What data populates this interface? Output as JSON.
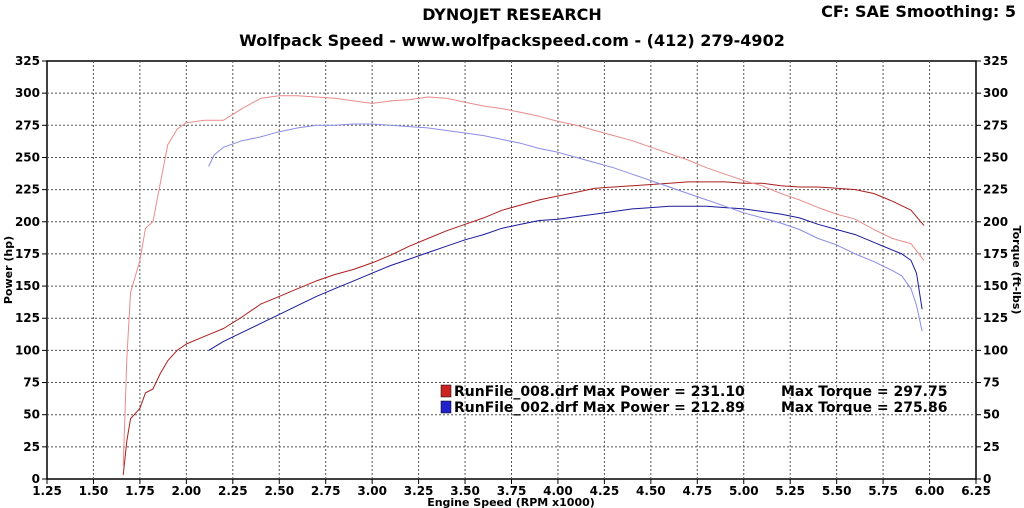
{
  "header": {
    "title": "DYNOJET RESEARCH",
    "subtitle": "Wolfpack Speed - www.wolfpackspeed.com - (412) 279-4902",
    "cf_smoothing": "CF: SAE  Smoothing: 5"
  },
  "chart_data": {
    "type": "line",
    "title": "DYNOJET RESEARCH",
    "xlabel": "Engine Speed (RPM x1000)",
    "ylabel_left": "Power (hp)",
    "ylabel_right": "Torque (ft-lbs)",
    "xlim": [
      1.25,
      6.25
    ],
    "ylim": [
      0,
      325
    ],
    "xticks": [
      "1.25",
      "1.50",
      "1.75",
      "2.00",
      "2.25",
      "2.50",
      "2.75",
      "3.00",
      "3.25",
      "3.50",
      "3.75",
      "4.00",
      "4.25",
      "4.50",
      "4.75",
      "5.00",
      "5.25",
      "5.50",
      "5.75",
      "6.00",
      "6.25"
    ],
    "yticks": [
      "0",
      "25",
      "50",
      "75",
      "100",
      "125",
      "150",
      "175",
      "200",
      "225",
      "250",
      "275",
      "300",
      "325"
    ],
    "grid": true,
    "legend_position": "bottom-right",
    "colors": {
      "run008_dark": "#aa1f1f",
      "run008_light": "#e98c8c",
      "run002_dark": "#1a1a9c",
      "run002_light": "#8c8ce6"
    },
    "legend": [
      {
        "file": "RunFile_008.drf",
        "max_power_text": "Max Power = 231.10",
        "max_torque_text": "Max Torque = 297.75",
        "color": "#cc2222"
      },
      {
        "file": "RunFile_002.drf",
        "max_power_text": "Max Power = 212.89",
        "max_torque_text": "Max Torque = 275.86",
        "color": "#2222cc"
      }
    ],
    "series": [
      {
        "name": "RunFile_008.drf Power",
        "color": "#aa1f1f",
        "x": [
          1.66,
          1.68,
          1.7,
          1.72,
          1.75,
          1.78,
          1.82,
          1.86,
          1.9,
          1.95,
          2.0,
          2.1,
          2.2,
          2.3,
          2.4,
          2.5,
          2.6,
          2.7,
          2.8,
          2.9,
          3.0,
          3.1,
          3.2,
          3.3,
          3.4,
          3.5,
          3.6,
          3.7,
          3.8,
          3.9,
          4.0,
          4.1,
          4.2,
          4.3,
          4.4,
          4.5,
          4.6,
          4.7,
          4.8,
          4.9,
          5.0,
          5.1,
          5.2,
          5.3,
          5.4,
          5.5,
          5.6,
          5.7,
          5.8,
          5.9,
          5.97
        ],
        "y": [
          3,
          30,
          47,
          50,
          55,
          67,
          70,
          82,
          92,
          100,
          105,
          111,
          117,
          126,
          136,
          142,
          148,
          154,
          159,
          163,
          168,
          174,
          181,
          187,
          193,
          198,
          203,
          209,
          213,
          217,
          220,
          223,
          226,
          227,
          228,
          229,
          230,
          231,
          231,
          231,
          230,
          230,
          228,
          227,
          227,
          226,
          225,
          222,
          216,
          209,
          197
        ]
      },
      {
        "name": "RunFile_008.drf Torque",
        "color": "#e98c8c",
        "x": [
          1.66,
          1.68,
          1.7,
          1.72,
          1.75,
          1.78,
          1.82,
          1.86,
          1.9,
          1.95,
          2.0,
          2.1,
          2.2,
          2.3,
          2.4,
          2.5,
          2.6,
          2.7,
          2.8,
          2.9,
          3.0,
          3.1,
          3.2,
          3.3,
          3.4,
          3.5,
          3.6,
          3.7,
          3.8,
          3.9,
          4.0,
          4.1,
          4.2,
          4.3,
          4.4,
          4.5,
          4.6,
          4.7,
          4.8,
          4.9,
          5.0,
          5.1,
          5.2,
          5.3,
          5.4,
          5.5,
          5.6,
          5.7,
          5.8,
          5.9,
          5.97
        ],
        "y": [
          10,
          95,
          145,
          155,
          170,
          195,
          200,
          230,
          260,
          272,
          277,
          279,
          279,
          288,
          296,
          298,
          298,
          297,
          296,
          294,
          292,
          294,
          295,
          297,
          296,
          293,
          290,
          288,
          285,
          282,
          278,
          275,
          271,
          267,
          263,
          258,
          253,
          248,
          242,
          237,
          232,
          228,
          222,
          217,
          211,
          206,
          202,
          194,
          187,
          183,
          170
        ]
      },
      {
        "name": "RunFile_002.drf Power",
        "color": "#1a1a9c",
        "x": [
          2.12,
          2.2,
          2.3,
          2.4,
          2.5,
          2.6,
          2.7,
          2.8,
          2.9,
          3.0,
          3.1,
          3.2,
          3.3,
          3.4,
          3.5,
          3.6,
          3.7,
          3.8,
          3.9,
          4.0,
          4.1,
          4.2,
          4.3,
          4.4,
          4.5,
          4.6,
          4.7,
          4.8,
          4.9,
          5.0,
          5.1,
          5.2,
          5.3,
          5.4,
          5.5,
          5.6,
          5.7,
          5.8,
          5.85,
          5.9,
          5.93,
          5.96
        ],
        "y": [
          100,
          107,
          114,
          121,
          128,
          135,
          142,
          148,
          154,
          160,
          166,
          171,
          176,
          181,
          186,
          190,
          195,
          198,
          201,
          202,
          204,
          206,
          208,
          210,
          211,
          212,
          212,
          212,
          211,
          210,
          208,
          206,
          203,
          198,
          194,
          190,
          184,
          178,
          175,
          170,
          160,
          132
        ]
      },
      {
        "name": "RunFile_002.drf Torque",
        "color": "#8c8ce6",
        "x": [
          2.12,
          2.15,
          2.2,
          2.3,
          2.4,
          2.5,
          2.6,
          2.7,
          2.8,
          2.9,
          3.0,
          3.1,
          3.2,
          3.3,
          3.4,
          3.5,
          3.6,
          3.7,
          3.8,
          3.9,
          4.0,
          4.1,
          4.2,
          4.3,
          4.4,
          4.5,
          4.6,
          4.7,
          4.8,
          4.9,
          5.0,
          5.1,
          5.2,
          5.3,
          5.4,
          5.5,
          5.6,
          5.7,
          5.8,
          5.85,
          5.9,
          5.93,
          5.96
        ],
        "y": [
          243,
          252,
          258,
          263,
          266,
          270,
          273,
          275,
          275,
          276,
          276,
          275,
          274,
          273,
          271,
          269,
          267,
          264,
          261,
          257,
          254,
          250,
          246,
          242,
          237,
          232,
          227,
          222,
          217,
          212,
          207,
          203,
          199,
          194,
          187,
          182,
          175,
          169,
          162,
          158,
          148,
          135,
          115
        ]
      }
    ]
  }
}
